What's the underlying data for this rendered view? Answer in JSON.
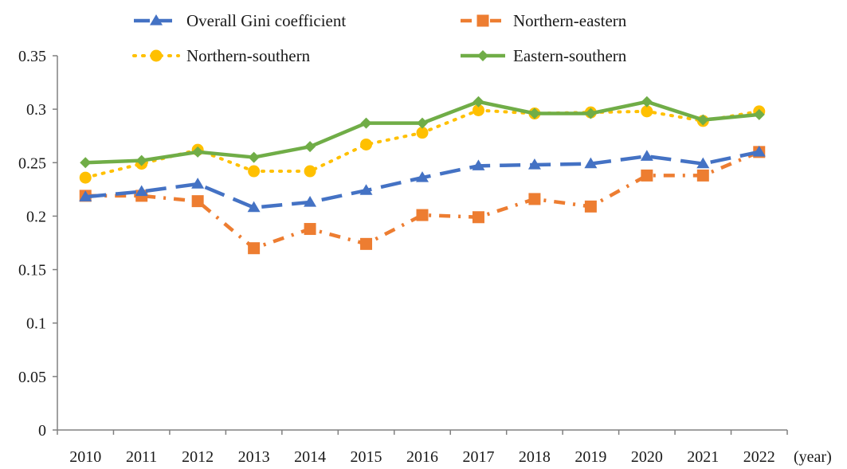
{
  "chart_data": {
    "type": "line",
    "title": "",
    "xlabel": "(year)",
    "ylabel": "",
    "ylim": [
      0,
      0.35
    ],
    "yticks": [
      "0",
      "0.05",
      "0.1",
      "0.15",
      "0.2",
      "0.25",
      "0.3",
      "0.35"
    ],
    "grid": false,
    "legend_position": "top",
    "categories": [
      "2010",
      "2011",
      "2012",
      "2013",
      "2014",
      "2015",
      "2016",
      "2017",
      "2018",
      "2019",
      "2020",
      "2021",
      "2022"
    ],
    "series": [
      {
        "name": "Overall Gini coefficient",
        "color": "#4472C4",
        "marker": "triangle",
        "line_style": "long-dash",
        "values": [
          0.218,
          0.223,
          0.23,
          0.208,
          0.213,
          0.224,
          0.236,
          0.247,
          0.248,
          0.249,
          0.256,
          0.249,
          0.26
        ]
      },
      {
        "name": "Northern-eastern",
        "color": "#ED7D31",
        "marker": "square",
        "line_style": "dash-dot",
        "values": [
          0.219,
          0.219,
          0.214,
          0.17,
          0.188,
          0.174,
          0.201,
          0.199,
          0.216,
          0.209,
          0.238,
          0.238,
          0.26
        ]
      },
      {
        "name": "Northern-southern",
        "color": "#FFC000",
        "marker": "circle",
        "line_style": "dotted",
        "values": [
          0.236,
          0.249,
          0.262,
          0.242,
          0.242,
          0.267,
          0.278,
          0.299,
          0.296,
          0.297,
          0.298,
          0.289,
          0.298
        ]
      },
      {
        "name": "Eastern-southern",
        "color": "#70AD47",
        "marker": "diamond",
        "line_style": "solid",
        "values": [
          0.25,
          0.252,
          0.26,
          0.255,
          0.265,
          0.287,
          0.287,
          0.307,
          0.296,
          0.296,
          0.307,
          0.29,
          0.295
        ]
      }
    ]
  }
}
